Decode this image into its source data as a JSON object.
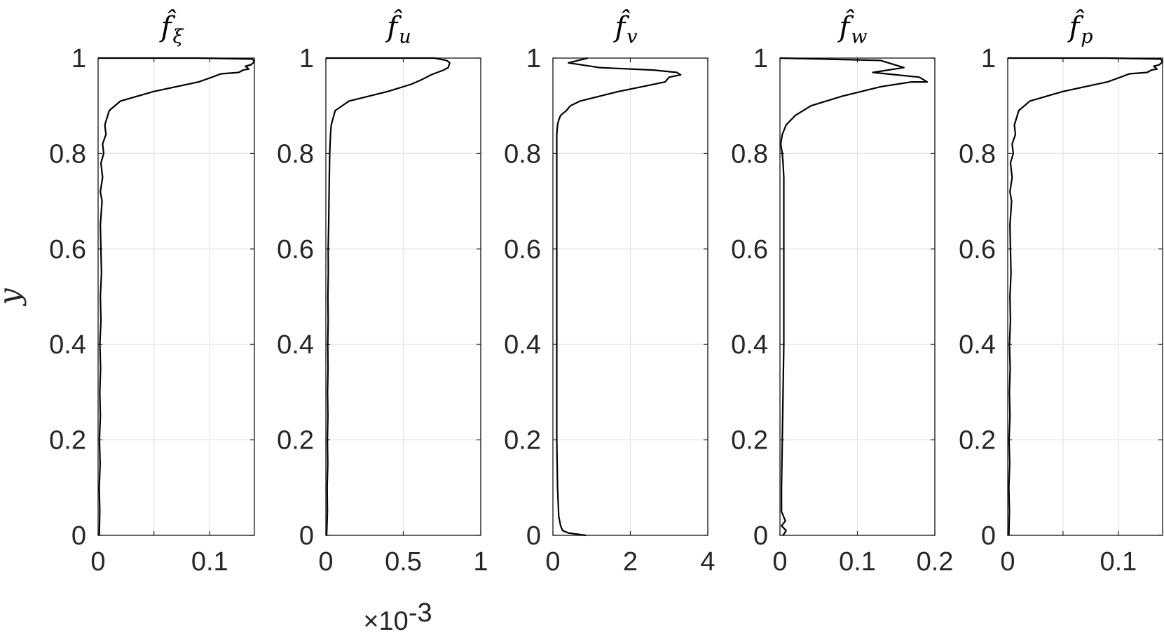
{
  "chart_data": [
    {
      "type": "line",
      "title": "f̂",
      "title_subscript": "ξ",
      "ylabel": "y",
      "xlim": [
        0,
        0.14
      ],
      "ylim": [
        0,
        1
      ],
      "xticks": [
        {
          "v": 0,
          "label": "0"
        },
        {
          "v": 0.05,
          "label": ""
        },
        {
          "v": 0.1,
          "label": "0.1"
        }
      ],
      "yticks": [
        {
          "v": 0,
          "label": "0"
        },
        {
          "v": 0.2,
          "label": "0.2"
        },
        {
          "v": 0.4,
          "label": "0.4"
        },
        {
          "v": 0.6,
          "label": "0.6"
        },
        {
          "v": 0.8,
          "label": "0.8"
        },
        {
          "v": 1,
          "label": "1"
        }
      ],
      "grid": true,
      "x": [
        0.001,
        0.0015,
        0.001,
        0.0018,
        0.0012,
        0.002,
        0.0015,
        0.0022,
        0.0016,
        0.0025,
        0.002,
        0.003,
        0.0025,
        0.002,
        0.0035,
        0.002,
        0.004,
        0.0025,
        0.005,
        0.004,
        0.007,
        0.006,
        0.01,
        0.02,
        0.05,
        0.09,
        0.102,
        0.11,
        0.126,
        0.13,
        0.135,
        0.132,
        0.137,
        0.139,
        0.14,
        0.138,
        0.09,
        0.0
      ],
      "y": [
        0.0,
        0.05,
        0.1,
        0.15,
        0.2,
        0.25,
        0.3,
        0.35,
        0.4,
        0.45,
        0.5,
        0.55,
        0.6,
        0.65,
        0.7,
        0.72,
        0.75,
        0.78,
        0.8,
        0.82,
        0.84,
        0.86,
        0.89,
        0.91,
        0.93,
        0.95,
        0.96,
        0.967,
        0.97,
        0.975,
        0.977,
        0.983,
        0.986,
        0.99,
        0.994,
        0.998,
        1.0,
        1.0
      ]
    },
    {
      "type": "line",
      "title": "f̂",
      "title_subscript": "u",
      "ylabel": "",
      "xlim": [
        0,
        1
      ],
      "ylim": [
        0,
        1
      ],
      "xticks": [
        {
          "v": 0,
          "label": "0"
        },
        {
          "v": 0.5,
          "label": "0.5"
        },
        {
          "v": 1,
          "label": "1"
        }
      ],
      "yticks": [
        {
          "v": 0,
          "label": "0"
        },
        {
          "v": 0.2,
          "label": "0.2"
        },
        {
          "v": 0.4,
          "label": "0.4"
        },
        {
          "v": 0.6,
          "label": "0.6"
        },
        {
          "v": 0.8,
          "label": "0.8"
        },
        {
          "v": 1,
          "label": "1"
        }
      ],
      "grid": true,
      "x_multiplier": "×10",
      "x_multiplier_exponent": "-3",
      "x": [
        0.005,
        0.01,
        0.008,
        0.012,
        0.01,
        0.013,
        0.011,
        0.014,
        0.012,
        0.015,
        0.013,
        0.016,
        0.015,
        0.018,
        0.02,
        0.022,
        0.025,
        0.03,
        0.035,
        0.06,
        0.15,
        0.4,
        0.55,
        0.62,
        0.68,
        0.72,
        0.76,
        0.79,
        0.8,
        0.78,
        0.7,
        0.0
      ],
      "y": [
        0.0,
        0.05,
        0.1,
        0.15,
        0.2,
        0.25,
        0.3,
        0.35,
        0.4,
        0.45,
        0.5,
        0.55,
        0.6,
        0.65,
        0.7,
        0.75,
        0.8,
        0.84,
        0.86,
        0.89,
        0.91,
        0.93,
        0.945,
        0.955,
        0.965,
        0.97,
        0.975,
        0.98,
        0.99,
        0.995,
        1.0,
        1.0
      ]
    },
    {
      "type": "line",
      "title": "f̂",
      "title_subscript": "v",
      "ylabel": "",
      "xlim": [
        0,
        4
      ],
      "ylim": [
        0,
        1
      ],
      "xticks": [
        {
          "v": 0,
          "label": "0"
        },
        {
          "v": 2,
          "label": "2"
        },
        {
          "v": 4,
          "label": "4"
        }
      ],
      "yticks": [
        {
          "v": 0,
          "label": "0"
        },
        {
          "v": 0.2,
          "label": "0.2"
        },
        {
          "v": 0.4,
          "label": "0.4"
        },
        {
          "v": 0.6,
          "label": "0.6"
        },
        {
          "v": 0.8,
          "label": "0.8"
        },
        {
          "v": 1,
          "label": "1"
        }
      ],
      "grid": true,
      "x": [
        0.85,
        0.4,
        0.25,
        0.2,
        0.15,
        0.12,
        0.1,
        0.1,
        0.1,
        0.1,
        0.1,
        0.1,
        0.1,
        0.1,
        0.1,
        0.12,
        0.15,
        0.2,
        0.35,
        0.45,
        0.7,
        1.2,
        1.7,
        2.3,
        2.9,
        3.0,
        3.3,
        3.2,
        2.6,
        1.2,
        0.4,
        0.9
      ],
      "y": [
        0.0,
        0.005,
        0.01,
        0.02,
        0.04,
        0.1,
        0.2,
        0.3,
        0.4,
        0.5,
        0.6,
        0.7,
        0.75,
        0.8,
        0.84,
        0.86,
        0.87,
        0.88,
        0.89,
        0.9,
        0.91,
        0.92,
        0.93,
        0.94,
        0.95,
        0.96,
        0.965,
        0.97,
        0.975,
        0.98,
        0.99,
        1.0
      ]
    },
    {
      "type": "line",
      "title": "f̂",
      "title_subscript": "w",
      "ylabel": "",
      "xlim": [
        0,
        0.2
      ],
      "ylim": [
        0,
        1
      ],
      "xticks": [
        {
          "v": 0,
          "label": "0"
        },
        {
          "v": 0.1,
          "label": "0.1"
        },
        {
          "v": 0.2,
          "label": "0.2"
        }
      ],
      "yticks": [
        {
          "v": 0,
          "label": "0"
        },
        {
          "v": 0.2,
          "label": "0.2"
        },
        {
          "v": 0.4,
          "label": "0.4"
        },
        {
          "v": 0.6,
          "label": "0.6"
        },
        {
          "v": 0.8,
          "label": "0.8"
        },
        {
          "v": 1,
          "label": "1"
        }
      ],
      "grid": true,
      "x": [
        0.004,
        0.008,
        0.002,
        0.007,
        0.002,
        0.002,
        0.003,
        0.004,
        0.005,
        0.005,
        0.005,
        0.005,
        0.005,
        0.004,
        0.003,
        0.002,
        0.001,
        0.003,
        0.008,
        0.02,
        0.04,
        0.08,
        0.13,
        0.17,
        0.19,
        0.18,
        0.12,
        0.16,
        0.13,
        0.0
      ],
      "y": [
        0.0,
        0.01,
        0.02,
        0.03,
        0.05,
        0.1,
        0.2,
        0.3,
        0.4,
        0.5,
        0.6,
        0.7,
        0.75,
        0.78,
        0.8,
        0.81,
        0.82,
        0.84,
        0.86,
        0.88,
        0.9,
        0.92,
        0.94,
        0.95,
        0.95,
        0.96,
        0.97,
        0.98,
        0.995,
        1.0
      ]
    },
    {
      "type": "line",
      "title": "f̂",
      "title_subscript": "p",
      "ylabel": "",
      "xlim": [
        0,
        0.14
      ],
      "ylim": [
        0,
        1
      ],
      "xticks": [
        {
          "v": 0,
          "label": "0"
        },
        {
          "v": 0.05,
          "label": ""
        },
        {
          "v": 0.1,
          "label": "0.1"
        }
      ],
      "yticks": [
        {
          "v": 0,
          "label": "0"
        },
        {
          "v": 0.2,
          "label": "0.2"
        },
        {
          "v": 0.4,
          "label": "0.4"
        },
        {
          "v": 0.6,
          "label": "0.6"
        },
        {
          "v": 0.8,
          "label": "0.8"
        },
        {
          "v": 1,
          "label": "1"
        }
      ],
      "grid": true,
      "x": [
        0.001,
        0.0015,
        0.001,
        0.0018,
        0.0012,
        0.002,
        0.0015,
        0.0022,
        0.0016,
        0.0025,
        0.002,
        0.003,
        0.0025,
        0.002,
        0.0035,
        0.002,
        0.004,
        0.0025,
        0.005,
        0.004,
        0.007,
        0.006,
        0.01,
        0.02,
        0.05,
        0.09,
        0.102,
        0.11,
        0.126,
        0.13,
        0.135,
        0.132,
        0.137,
        0.139,
        0.14,
        0.138,
        0.09,
        0.0
      ],
      "y": [
        0.0,
        0.05,
        0.1,
        0.15,
        0.2,
        0.25,
        0.3,
        0.35,
        0.4,
        0.45,
        0.5,
        0.55,
        0.6,
        0.65,
        0.7,
        0.72,
        0.75,
        0.78,
        0.8,
        0.82,
        0.84,
        0.86,
        0.89,
        0.91,
        0.93,
        0.95,
        0.96,
        0.967,
        0.97,
        0.975,
        0.977,
        0.983,
        0.986,
        0.99,
        0.994,
        0.998,
        1.0,
        1.0
      ]
    }
  ]
}
